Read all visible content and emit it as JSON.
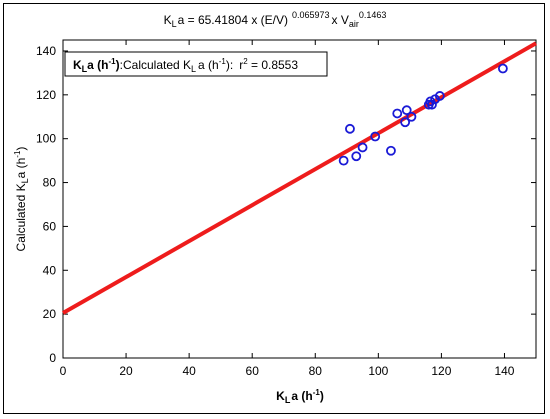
{
  "chart_data": {
    "type": "scatter",
    "title": {
      "prefix": "K",
      "prefix_sub": "L",
      "middle": "a = 65.41804 x (E/V)",
      "exponent1": "0.065973",
      "x_text": "x V",
      "x_sub": "air",
      "exponent2": "0.1463"
    },
    "xlabel": {
      "main": "K",
      "sub": "L",
      "rest": "a (h",
      "sup": "-1",
      "close": ")"
    },
    "ylabel": {
      "main": "Calculated K",
      "sub": "L",
      "rest": "a (h",
      "sup": "-1",
      "close": ")"
    },
    "xlim": [
      0,
      150
    ],
    "ylim": [
      0,
      145
    ],
    "x_ticks": [
      0,
      20,
      40,
      60,
      80,
      100,
      120,
      140
    ],
    "y_ticks": [
      0,
      20,
      40,
      60,
      80,
      100,
      120,
      140
    ],
    "legend": {
      "position": "top-left",
      "label_bold": "K",
      "label_bold_sub": "L",
      "label_bold_rest": "a (h",
      "label_bold_sup": "-1",
      "label_bold_close": ")",
      "label_rest": ":Calculated K",
      "label_rest_sub": "L",
      "label_rest_tail": "a (h",
      "label_rest_sup": "-1",
      "label_rest_close": "):",
      "r2_prefix": "r",
      "r2_sup": "2",
      "r2_value": " = 0.8553"
    },
    "points": [
      {
        "x": 89,
        "y": 90
      },
      {
        "x": 91,
        "y": 104.5
      },
      {
        "x": 93,
        "y": 92
      },
      {
        "x": 95,
        "y": 96
      },
      {
        "x": 99,
        "y": 101
      },
      {
        "x": 104,
        "y": 94.5
      },
      {
        "x": 106,
        "y": 111.5
      },
      {
        "x": 108.5,
        "y": 107.5
      },
      {
        "x": 109,
        "y": 113
      },
      {
        "x": 110.5,
        "y": 110
      },
      {
        "x": 116,
        "y": 115.5
      },
      {
        "x": 116.5,
        "y": 117
      },
      {
        "x": 117,
        "y": 115.5
      },
      {
        "x": 118,
        "y": 118
      },
      {
        "x": 119.5,
        "y": 119.5
      },
      {
        "x": 139.5,
        "y": 132
      }
    ],
    "fit_line": {
      "intercept": 20.5,
      "slope": 0.82
    },
    "colors": {
      "points": "#1a1ad6",
      "fit": "#ee1c1c",
      "axis": "#000000"
    }
  }
}
